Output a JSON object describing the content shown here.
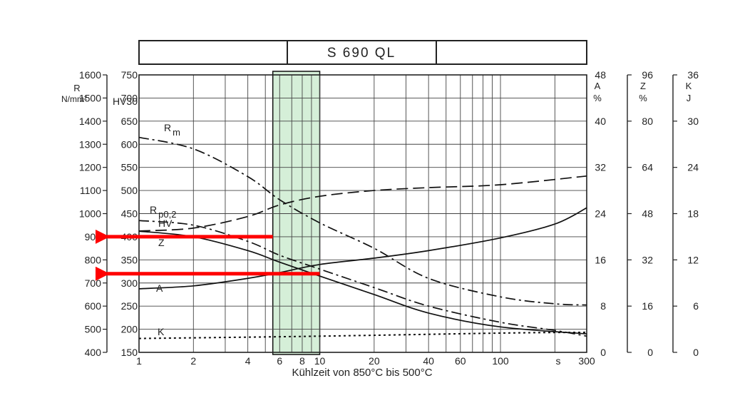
{
  "chart_data": {
    "type": "line",
    "title": "S 690 QL",
    "xlabel": "Kühlzeit von 850°C bis 500°C",
    "x_unit": "s",
    "x_scale": "log",
    "xlim": [
      1,
      300
    ],
    "x_ticks": [
      1,
      2,
      4,
      6,
      8,
      10,
      20,
      40,
      60,
      100,
      300
    ],
    "x_unit_label": "s",
    "highlight_band": {
      "x_range": [
        5.5,
        10
      ],
      "color": "#d5efd8"
    },
    "axes": {
      "R": {
        "label1": "R",
        "label2": "N/mm²",
        "range": [
          400,
          1600
        ],
        "ticks": [
          "400",
          "500",
          "600",
          "700",
          "800",
          "900",
          "1000",
          "1100",
          "1200",
          "1300",
          "1400",
          "1500",
          "1600"
        ]
      },
      "HV": {
        "label": "HV30",
        "range": [
          150,
          750
        ],
        "ticks": [
          "150",
          "200",
          "250",
          "300",
          "350",
          "400",
          "450",
          "500",
          "550",
          "600",
          "650",
          "700",
          "750"
        ]
      },
      "A": {
        "label1": "A",
        "label2": "%",
        "range": [
          0,
          48
        ],
        "ticks": [
          "0",
          "8",
          "16",
          "24",
          "32",
          "40",
          "48"
        ]
      },
      "Z": {
        "label1": "Z",
        "label2": "%",
        "range": [
          0,
          96
        ],
        "ticks": [
          "0",
          "16",
          "32",
          "48",
          "64",
          "80",
          "96"
        ]
      },
      "K": {
        "label1": "K",
        "label2": "J",
        "range": [
          0,
          36
        ],
        "ticks": [
          "0",
          "6",
          "12",
          "18",
          "24",
          "30",
          "36"
        ]
      }
    },
    "series": [
      {
        "name": "R m",
        "axis": "R",
        "style": "dashdot",
        "x": [
          1,
          2,
          4,
          6,
          10,
          20,
          40,
          100,
          200,
          300
        ],
        "y": [
          1330,
          1280,
          1160,
          1060,
          960,
          850,
          720,
          640,
          610,
          605
        ]
      },
      {
        "name": "R p0,2",
        "axis": "R",
        "style": "dashdot",
        "x": [
          1,
          2,
          4,
          6,
          10,
          20,
          40,
          100,
          200,
          300
        ],
        "y": [
          970,
          950,
          880,
          820,
          760,
          680,
          600,
          530,
          495,
          470
        ]
      },
      {
        "name": "HV",
        "axis": "HV",
        "style": "solid",
        "x": [
          1,
          2,
          4,
          6,
          10,
          20,
          40,
          100,
          300
        ],
        "y": [
          412,
          400,
          370,
          345,
          315,
          275,
          235,
          205,
          190
        ]
      },
      {
        "name": "A",
        "axis": "A",
        "style": "solid",
        "x": [
          1,
          2,
          4,
          6,
          10,
          20,
          40,
          100,
          200,
          300
        ],
        "y": [
          11,
          11.5,
          12.8,
          13.8,
          15.2,
          16.3,
          17.6,
          19.8,
          22.2,
          25
        ]
      },
      {
        "name": "Z",
        "axis": "Z",
        "style": "dashed",
        "x": [
          1,
          2,
          4,
          6,
          10,
          20,
          40,
          100,
          300
        ],
        "y": [
          42,
          43,
          47,
          51,
          54,
          56,
          57,
          58,
          61
        ]
      },
      {
        "name": "K",
        "axis": "K",
        "style": "dotted",
        "x": [
          1,
          10,
          100,
          300
        ],
        "y": [
          1.8,
          2.1,
          2.5,
          2.6
        ]
      }
    ],
    "curve_labels": [
      {
        "series": "R m",
        "main": "R",
        "sub": "m"
      },
      {
        "series": "R p0,2",
        "main": "R",
        "sub": "p0,2"
      },
      {
        "series": "HV",
        "main": "HV",
        "sub": ""
      },
      {
        "series": "Z",
        "main": "Z",
        "sub": ""
      },
      {
        "series": "A",
        "main": "A",
        "sub": ""
      },
      {
        "series": "K",
        "main": "K",
        "sub": ""
      }
    ],
    "annotations": [
      {
        "type": "arrow",
        "color": "#ff0000",
        "from_x": 5.5,
        "to_axis": "R",
        "value": 900
      },
      {
        "type": "arrow",
        "color": "#ff0000",
        "from_x": 10,
        "to_axis": "R",
        "value": 740
      }
    ]
  }
}
